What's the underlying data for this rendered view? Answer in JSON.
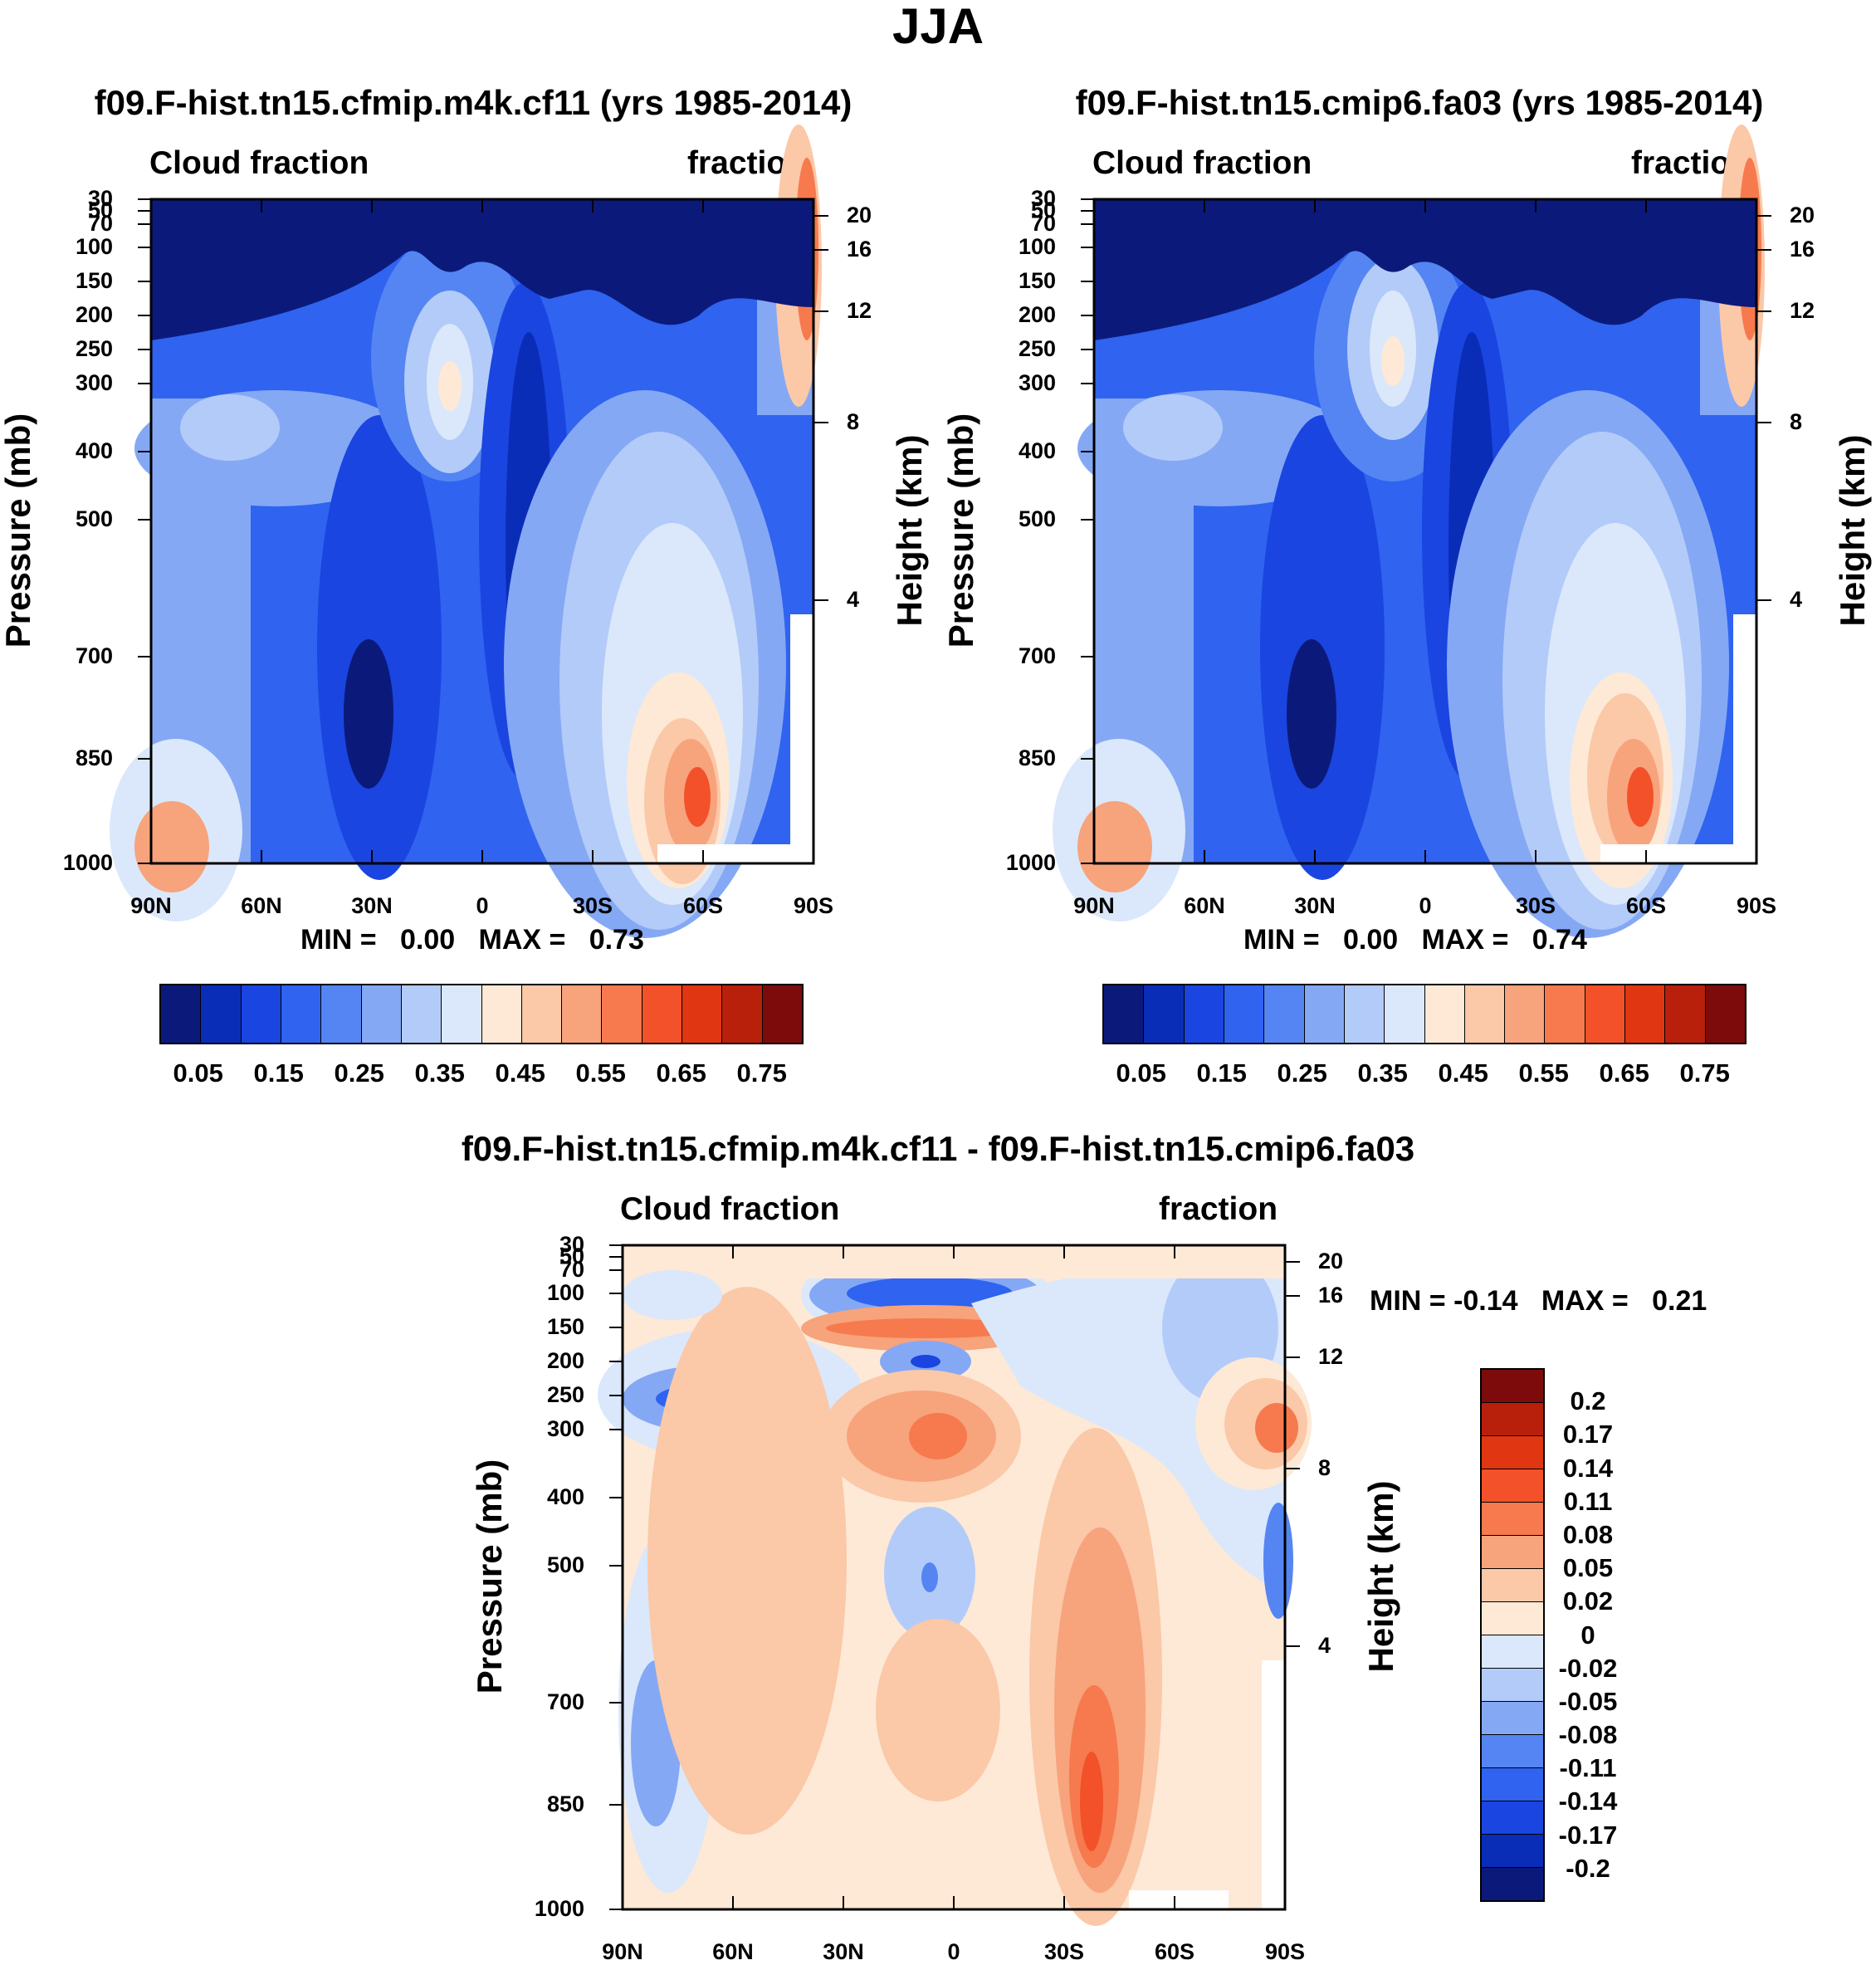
{
  "page_title": "JJA",
  "panels": [
    {
      "title": "f09.F-hist.tn15.cfmip.m4k.cf11 (yrs 1985-2014)",
      "left_label": "Cloud fraction",
      "right_label": "fraction",
      "ylabel": "Pressure (mb)",
      "ylabel_right": "Height (km)",
      "min_label": "MIN =",
      "min_value": "0.00",
      "max_label": "MAX =",
      "max_value": "0.73"
    },
    {
      "title": "f09.F-hist.tn15.cmip6.fa03 (yrs 1985-2014)",
      "left_label": "Cloud fraction",
      "right_label": "fraction",
      "ylabel": "Pressure (mb)",
      "ylabel_right": "Height (km)",
      "min_label": "MIN =",
      "min_value": "0.00",
      "max_label": "MAX =",
      "max_value": "0.74"
    },
    {
      "title": "f09.F-hist.tn15.cfmip.m4k.cf11 - f09.F-hist.tn15.cmip6.fa03",
      "left_label": "Cloud fraction",
      "right_label": "fraction",
      "ylabel": "Pressure (mb)",
      "ylabel_right": "Height (km)",
      "min_label": "MIN =",
      "min_value": "-0.14",
      "max_label": "MAX =",
      "max_value": "0.21"
    }
  ],
  "axes": {
    "x_ticks": [
      "90N",
      "60N",
      "30N",
      "0",
      "30S",
      "60S",
      "90S"
    ],
    "p_ticks": [
      "30",
      "50",
      "70",
      "100",
      "150",
      "200",
      "250",
      "300",
      "400",
      "500",
      "700",
      "850",
      "1000"
    ],
    "h_ticks": [
      "20",
      "16",
      "12",
      "8",
      "4"
    ]
  },
  "colorbar_abs": {
    "colors": [
      "#0b1a7a",
      "#0a2db8",
      "#1a45e0",
      "#2f63f0",
      "#5585f2",
      "#85a8f5",
      "#b3cbf8",
      "#dbe8fb",
      "#fde9d6",
      "#fbc8a8",
      "#f7a37c",
      "#f67a4e",
      "#f2512a",
      "#e13612",
      "#b8200c",
      "#7d0b0b"
    ],
    "labels": [
      "0.05",
      "0.15",
      "0.25",
      "0.35",
      "0.45",
      "0.55",
      "0.65",
      "0.75"
    ]
  },
  "colorbar_diff": {
    "colors": [
      "#7d0b0b",
      "#b8200c",
      "#e13612",
      "#f2512a",
      "#f67a4e",
      "#f7a37c",
      "#fbc8a8",
      "#fde9d6",
      "#dbe8fb",
      "#b3cbf8",
      "#85a8f5",
      "#5585f2",
      "#2f63f0",
      "#1a45e0",
      "#0a2db8",
      "#0b1a7a"
    ],
    "labels": [
      "0.2",
      "0.17",
      "0.14",
      "0.11",
      "0.08",
      "0.05",
      "0.02",
      "0",
      "-0.02",
      "-0.05",
      "-0.08",
      "-0.11",
      "-0.14",
      "-0.17",
      "-0.2"
    ]
  },
  "chart_data": [
    {
      "type": "heatmap",
      "title": "f09.F-hist.tn15.cfmip.m4k.cf11 (yrs 1985-2014)",
      "xlabel": "",
      "ylabel": "Pressure (mb)",
      "y2label": "Height (km)",
      "x_categories": [
        "90N",
        "60N",
        "30N",
        "0",
        "30S",
        "60S",
        "90S"
      ],
      "y_levels_mb": [
        30,
        50,
        70,
        100,
        150,
        200,
        250,
        300,
        400,
        500,
        700,
        850,
        1000
      ],
      "y2_levels_km": [
        20,
        16,
        12,
        8,
        4
      ],
      "zmin": 0.0,
      "zmax": 0.73,
      "z_description_values": {
        "stratosphere_above_100mb": 0.02,
        "tropical_upper_peak_near_10N_275mb": 0.45,
        "subtropical_lower_min": 0.05,
        "southern_stratocumulus_peak_near_55S_850mb": 0.65,
        "south_pole_upper": 0.7
      }
    },
    {
      "type": "heatmap",
      "title": "f09.F-hist.tn15.cmip6.fa03 (yrs 1985-2014)",
      "xlabel": "",
      "ylabel": "Pressure (mb)",
      "y2label": "Height (km)",
      "x_categories": [
        "90N",
        "60N",
        "30N",
        "0",
        "30S",
        "60S",
        "90S"
      ],
      "y_levels_mb": [
        30,
        50,
        70,
        100,
        150,
        200,
        250,
        300,
        400,
        500,
        700,
        850,
        1000
      ],
      "y2_levels_km": [
        20,
        16,
        12,
        8,
        4
      ],
      "zmin": 0.0,
      "zmax": 0.74,
      "z_description_values": {
        "stratosphere_above_100mb": 0.02,
        "tropical_upper_peak_near_10N_225mb": 0.45,
        "subtropical_lower_min": 0.05,
        "southern_stratocumulus_peak_near_52S_850mb": 0.6,
        "south_pole_upper": 0.7
      }
    },
    {
      "type": "heatmap",
      "title": "f09.F-hist.tn15.cfmip.m4k.cf11 - f09.F-hist.tn15.cmip6.fa03",
      "xlabel": "",
      "ylabel": "Pressure (mb)",
      "y2label": "Height (km)",
      "x_categories": [
        "90N",
        "60N",
        "30N",
        "0",
        "30S",
        "60S",
        "90S"
      ],
      "y_levels_mb": [
        30,
        50,
        70,
        100,
        150,
        200,
        250,
        300,
        400,
        500,
        700,
        850,
        1000
      ],
      "y2_levels_km": [
        20,
        16,
        12,
        8,
        4
      ],
      "zmin": -0.14,
      "zmax": 0.21,
      "z_description_values": {
        "tropical_100mb_negative": -0.14,
        "tropical_150mb_positive": 0.08,
        "tropical_300mb_positive": 0.1,
        "northern_midlat_250mb_negative": -0.1,
        "southern_subtropics_800mb_positive": 0.11,
        "south_pole_300mb_positive": 0.14
      }
    }
  ]
}
